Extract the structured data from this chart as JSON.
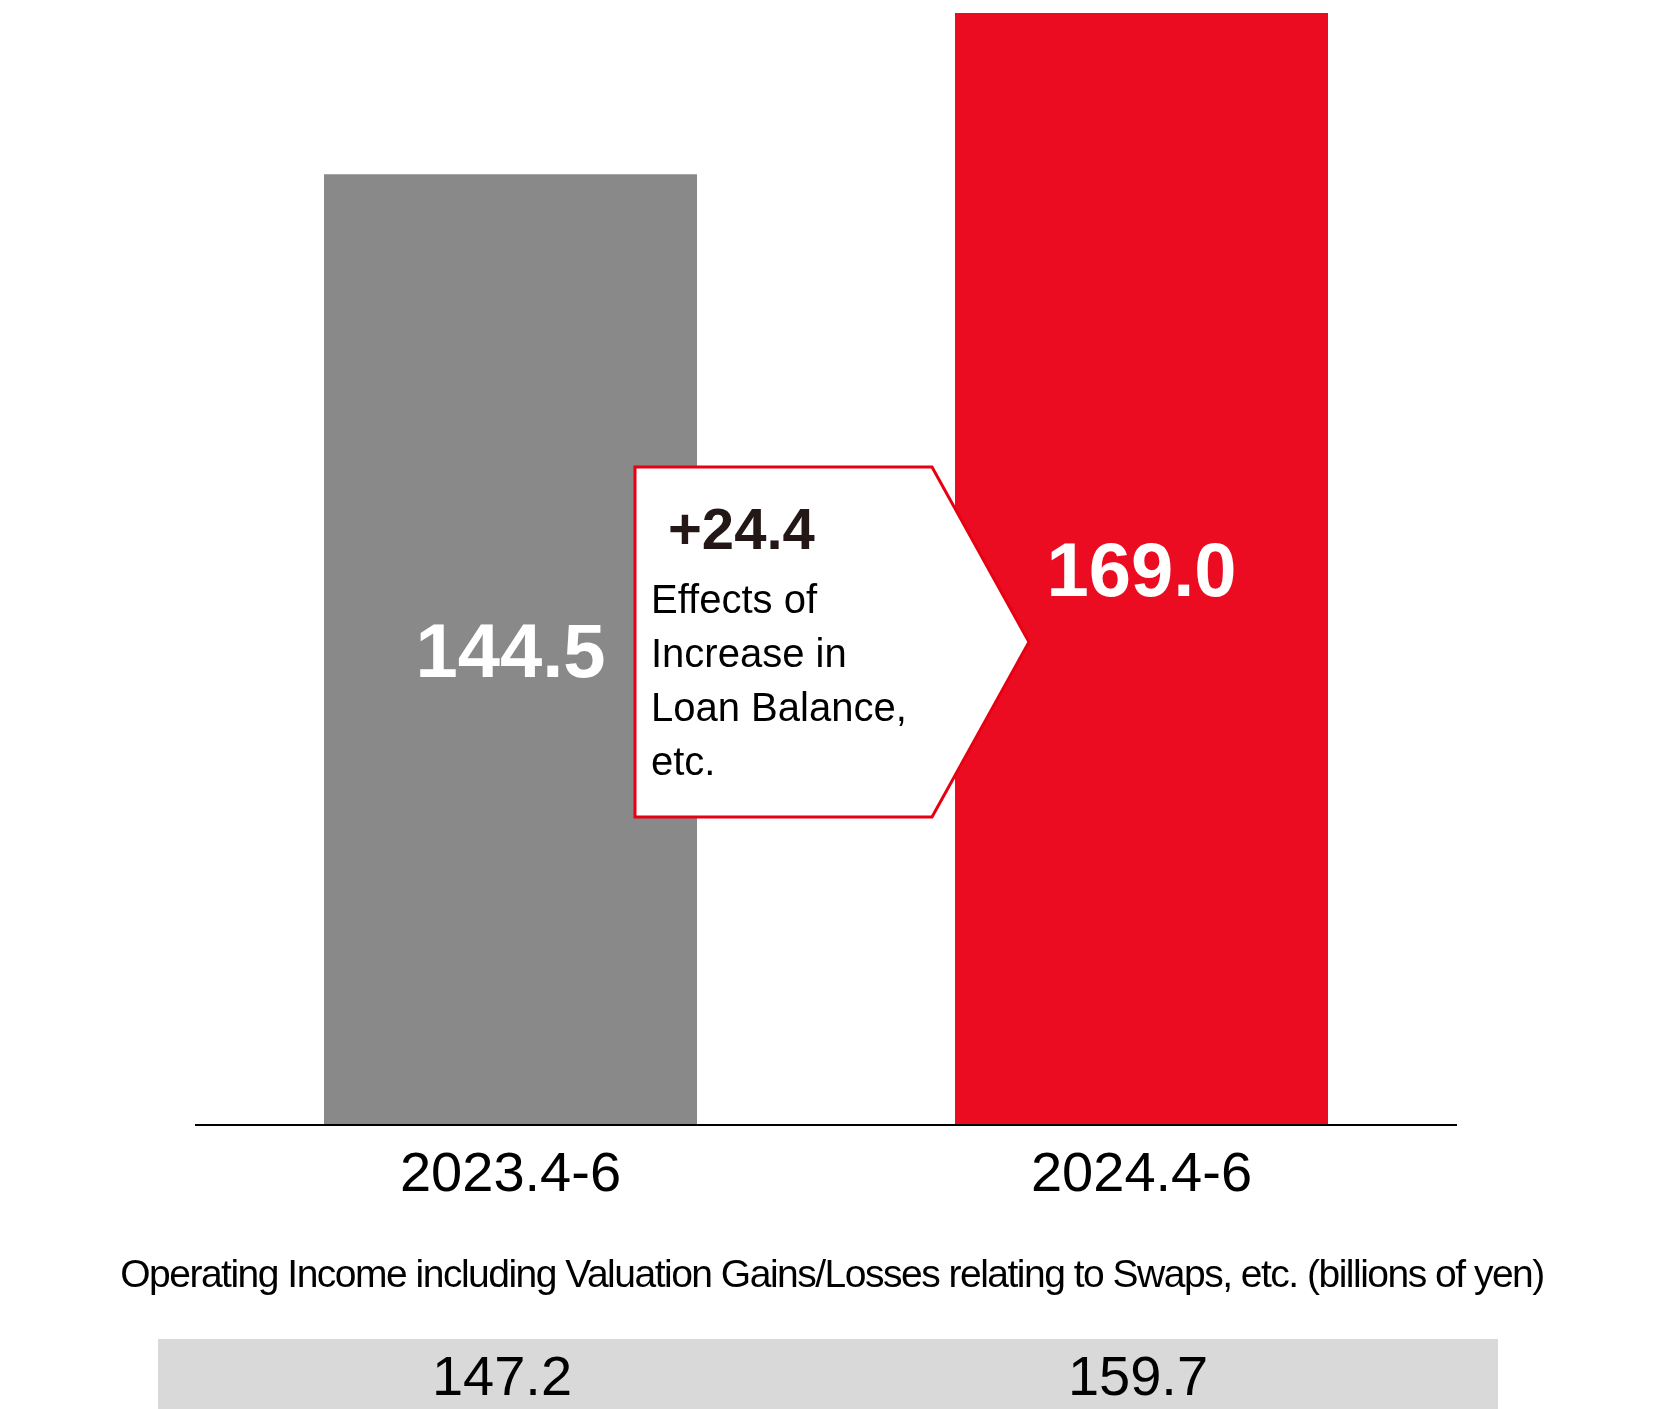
{
  "chart_data": {
    "type": "bar",
    "categories": [
      "2023.4-6",
      "2024.4-6"
    ],
    "values": [
      144.5,
      169.0
    ],
    "colors": [
      "#898989",
      "#ec0c21"
    ],
    "value_labels": [
      "144.5",
      "169.0"
    ],
    "grid": false,
    "legend": false,
    "annotations": [
      "+24.4",
      "Effects of Increase in Loan Balance, etc.",
      "Operating Income including Valuation Gains/Losses relating to Swaps, etc. (billions of yen)",
      "147.2",
      "159.7"
    ]
  }
}
